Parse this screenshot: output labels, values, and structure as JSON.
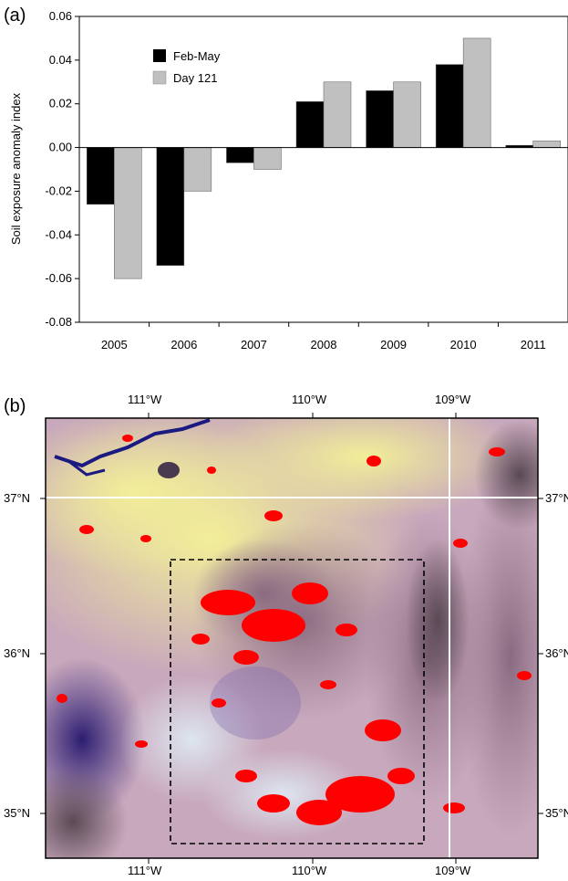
{
  "panel_a_label": "(a)",
  "panel_b_label": "(b)",
  "chart_data": {
    "type": "bar",
    "title": "",
    "xlabel": "",
    "ylabel": "Soil exposure anomaly index",
    "categories": [
      "2005",
      "2006",
      "2007",
      "2008",
      "2009",
      "2010",
      "2011"
    ],
    "series": [
      {
        "name": "Feb-May",
        "color": "#000000",
        "values": [
          -0.026,
          -0.054,
          -0.007,
          0.021,
          0.026,
          0.038,
          0.001
        ]
      },
      {
        "name": "Day 121",
        "color": "#c0c0c0",
        "values": [
          -0.06,
          -0.02,
          -0.01,
          0.03,
          0.03,
          0.05,
          0.003
        ]
      }
    ],
    "ylim": [
      -0.08,
      0.06
    ],
    "yticks": [
      "-0.08",
      "-0.06",
      "-0.04",
      "-0.02",
      "0.00",
      "0.02",
      "0.04",
      "0.06"
    ],
    "grid": false,
    "legend_position": "top-left"
  },
  "map": {
    "top_lon_labels": [
      "111°W",
      "110°W",
      "109°W"
    ],
    "bottom_lon_labels": [
      "111°W",
      "110°W",
      "109°W"
    ],
    "left_lat_labels": [
      "37°N",
      "36°N",
      "35°N"
    ],
    "right_lat_labels": [
      "37°N",
      "36°N",
      "35°N"
    ],
    "colors": {
      "exposed_soil": "#ff0000",
      "water": "#1a1a80",
      "study_box": "#000000"
    }
  }
}
